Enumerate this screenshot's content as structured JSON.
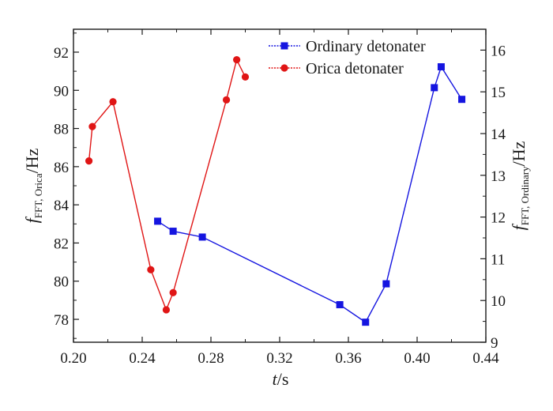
{
  "chart_data": {
    "type": "line",
    "xlabel": {
      "var": "t",
      "unit": "/s"
    },
    "ylabel_left": {
      "var": "f",
      "sub": "FFT, Orica",
      "unit": "/Hz"
    },
    "ylabel_right": {
      "var": "f",
      "sub": "FFT, Ordinary",
      "unit": "/Hz"
    },
    "xlim": [
      0.2,
      0.44
    ],
    "xticks": [
      "0.20",
      "0.24",
      "0.28",
      "0.32",
      "0.36",
      "0.40",
      "0.44"
    ],
    "ylim_left": [
      76.8,
      93.2
    ],
    "yticks_left": [
      "78",
      "80",
      "82",
      "84",
      "86",
      "88",
      "90",
      "92"
    ],
    "ylim_right": [
      9.0,
      16.5
    ],
    "yticks_right": [
      "9",
      "10",
      "11",
      "12",
      "13",
      "14",
      "15",
      "16"
    ],
    "legend_position": "top-right",
    "grid": false,
    "series": [
      {
        "name": "Ordinary detonater",
        "axis": "right",
        "color": "#1515e0",
        "marker": "square",
        "x": [
          0.249,
          0.258,
          0.275,
          0.355,
          0.37,
          0.382,
          0.41,
          0.414,
          0.426
        ],
        "y": [
          11.9,
          11.66,
          11.52,
          9.9,
          9.48,
          10.4,
          15.1,
          15.6,
          14.82
        ]
      },
      {
        "name": "Orica detonater",
        "axis": "left",
        "color": "#e01515",
        "marker": "circle",
        "x": [
          0.209,
          0.211,
          0.223,
          0.245,
          0.254,
          0.258,
          0.289,
          0.295,
          0.3
        ],
        "y": [
          86.3,
          88.1,
          89.4,
          80.6,
          78.5,
          79.4,
          89.5,
          91.6,
          90.7
        ]
      }
    ]
  }
}
